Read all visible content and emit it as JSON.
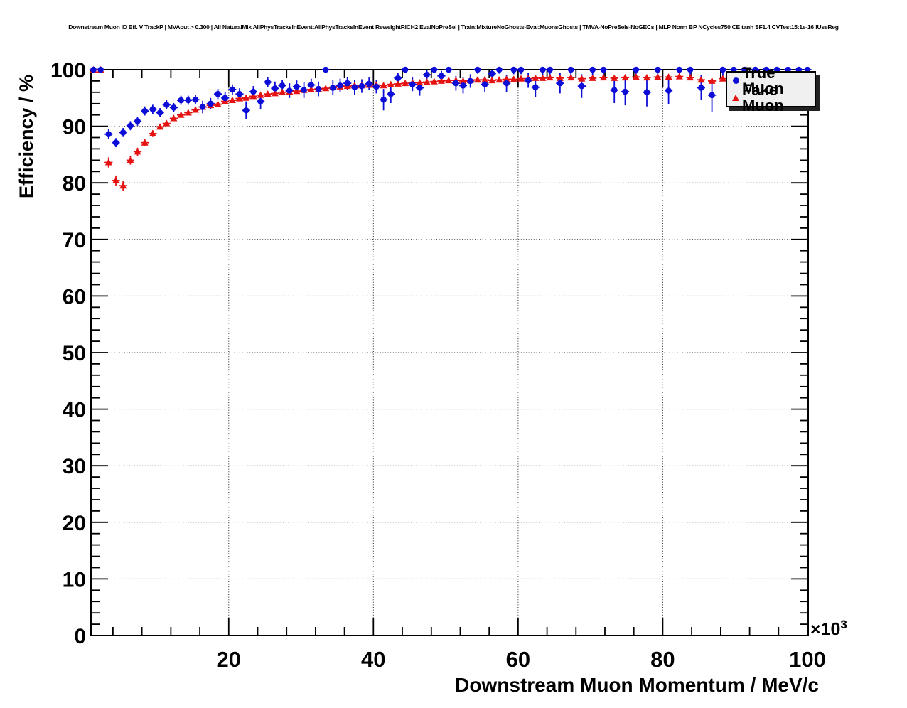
{
  "chart_data": {
    "type": "scatter",
    "title": "Downstream Muon ID Eff. V TrackP | MVAout > 0.300 | All NaturalMix AllPhysTracksInEvent:AllPhysTracksInEvent ReweightRICH2 EvalNoPreSel | Train:MixtureNoGhosts-Eval:MuonsGhosts | TMVA-NoPreSels-NoGECs | MLP Norm BP NCycles750 CE tanh SF1.4 CVTest15:1e-16 !UseReg",
    "xlabel": "Downstream Muon Momentum / MeV/c",
    "ylabel": "Efficiency / %",
    "x_scale_exponent": {
      "base": "×10",
      "power": "3"
    },
    "xlim": [
      0.96,
      100.1
    ],
    "ylim": [
      0,
      100
    ],
    "x_ticks": [
      20,
      40,
      60,
      80,
      100
    ],
    "x_minor_step": 4,
    "y_ticks": [
      0,
      10,
      20,
      30,
      40,
      50,
      60,
      70,
      80,
      90,
      100
    ],
    "y_minor_step": 2,
    "grid": "dotted-major",
    "legend": {
      "position": "top-right",
      "background": "#f0f0f0",
      "border": "#000000",
      "shadow": "#222222"
    },
    "x": [
      1.3,
      2.3,
      3.4,
      4.4,
      5.4,
      6.4,
      7.4,
      8.4,
      9.5,
      10.5,
      11.4,
      12.4,
      13.4,
      14.4,
      15.4,
      16.4,
      17.5,
      18.5,
      19.5,
      20.5,
      21.5,
      22.4,
      23.4,
      24.4,
      25.4,
      26.4,
      27.4,
      28.4,
      29.4,
      30.4,
      31.4,
      32.4,
      33.4,
      34.4,
      35.4,
      36.4,
      37.4,
      38.4,
      39.4,
      40.4,
      41.4,
      42.4,
      43.4,
      44.4,
      45.4,
      46.4,
      47.4,
      48.4,
      49.4,
      50.4,
      51.4,
      52.4,
      53.4,
      54.4,
      55.4,
      56.4,
      57.4,
      58.4,
      59.4,
      60.4,
      61.4,
      62.4,
      63.4,
      64.4,
      65.8,
      67.3,
      68.8,
      70.3,
      71.8,
      73.3,
      74.8,
      76.3,
      77.8,
      79.3,
      80.8,
      82.3,
      83.8,
      85.3,
      86.8,
      88.3,
      89.8,
      91.3,
      92.8,
      94.3,
      95.8,
      97.3,
      98.8,
      100.0
    ],
    "series": [
      {
        "name": "True Muon",
        "marker": "circle",
        "color": "#0d0dd8",
        "ex": 0.55,
        "y": [
          100,
          100,
          88.6,
          87.1,
          88.9,
          90.1,
          90.9,
          92.7,
          93.0,
          92.4,
          93.8,
          93.3,
          94.6,
          94.6,
          94.7,
          93.4,
          94.0,
          95.7,
          95.0,
          96.5,
          95.7,
          92.8,
          96.1,
          94.4,
          97.8,
          96.7,
          97.2,
          96.3,
          97.0,
          96.4,
          97.3,
          96.6,
          100,
          96.8,
          97.2,
          97.6,
          96.9,
          97.1,
          97.5,
          97.0,
          94.7,
          95.7,
          98.5,
          100,
          97.4,
          96.8,
          99.1,
          100,
          98.9,
          100,
          97.6,
          97.2,
          98.0,
          100,
          97.4,
          99.3,
          100,
          97.6,
          100,
          100,
          98.1,
          96.9,
          100,
          100,
          97.6,
          100,
          97.1,
          100,
          100,
          96.4,
          96.1,
          100,
          96.0,
          100,
          96.3,
          100,
          100,
          96.8,
          95.5,
          100,
          100,
          100,
          100,
          100,
          100,
          100,
          100,
          100
        ],
        "ey": [
          0.2,
          0.2,
          0.9,
          0.8,
          0.8,
          0.8,
          0.8,
          0.8,
          0.8,
          0.8,
          0.8,
          0.8,
          0.8,
          0.8,
          0.8,
          1.1,
          1.0,
          0.9,
          1.0,
          0.9,
          1.0,
          1.6,
          1.0,
          1.4,
          0.9,
          1.2,
          1.0,
          1.3,
          1.1,
          1.4,
          1.1,
          1.3,
          0.5,
          1.3,
          1.2,
          1.1,
          1.3,
          1.2,
          1.1,
          1.2,
          1.9,
          1.6,
          0.9,
          0.6,
          1.2,
          1.4,
          0.8,
          0.6,
          0.9,
          0.6,
          1.3,
          1.4,
          1.2,
          0.7,
          1.4,
          0.9,
          0.7,
          1.5,
          0.8,
          0.8,
          1.3,
          1.7,
          0.9,
          0.9,
          1.8,
          1.0,
          2.1,
          1.0,
          1.0,
          2.3,
          2.4,
          1.1,
          2.5,
          1.1,
          2.4,
          1.2,
          1.2,
          2.2,
          2.9,
          1.3,
          1.3,
          1.4,
          1.4,
          1.5,
          1.5,
          1.6,
          1.6,
          1.6
        ]
      },
      {
        "name": "Fake Muon",
        "marker": "triangle-up",
        "color": "#e51212",
        "ex": 0.55,
        "y": [
          100,
          100,
          83.6,
          80.4,
          79.5,
          84.0,
          85.5,
          87.1,
          88.7,
          89.9,
          90.5,
          91.4,
          92.0,
          92.4,
          92.9,
          93.4,
          93.7,
          93.9,
          94.4,
          94.6,
          94.9,
          95.0,
          95.3,
          95.5,
          95.7,
          95.8,
          96.0,
          96.1,
          96.2,
          96.4,
          96.5,
          96.6,
          96.7,
          96.9,
          97.0,
          97.1,
          97.2,
          97.2,
          97.3,
          97.3,
          97.2,
          97.4,
          97.5,
          97.6,
          97.7,
          97.7,
          97.8,
          97.9,
          98.0,
          98.1,
          98.1,
          98.0,
          98.1,
          98.2,
          98.2,
          98.1,
          98.2,
          98.3,
          98.3,
          98.4,
          98.4,
          98.5,
          98.5,
          98.6,
          98.5,
          98.6,
          98.4,
          98.5,
          98.6,
          98.5,
          98.6,
          98.7,
          98.6,
          98.7,
          98.7,
          98.8,
          98.6,
          98.2,
          98.0,
          98.4,
          98.7,
          98.6,
          98.7,
          98.6,
          98.8,
          98.7,
          98.9,
          98.8
        ],
        "ey": [
          0.2,
          0.2,
          0.9,
          0.9,
          0.9,
          0.8,
          0.7,
          0.6,
          0.6,
          0.5,
          0.5,
          0.5,
          0.4,
          0.4,
          0.4,
          0.4,
          0.4,
          0.35,
          0.35,
          0.3,
          0.3,
          0.3,
          0.3,
          0.3,
          0.3,
          0.3,
          0.3,
          0.25,
          0.25,
          0.25,
          0.25,
          0.25,
          0.25,
          0.25,
          0.2,
          0.2,
          0.2,
          0.2,
          0.2,
          0.2,
          0.2,
          0.2,
          0.2,
          0.2,
          0.2,
          0.2,
          0.2,
          0.2,
          0.2,
          0.2,
          0.2,
          0.2,
          0.2,
          0.2,
          0.2,
          0.2,
          0.2,
          0.2,
          0.2,
          0.2,
          0.2,
          0.2,
          0.2,
          0.2,
          0.25,
          0.25,
          0.25,
          0.25,
          0.25,
          0.3,
          0.3,
          0.3,
          0.3,
          0.3,
          0.3,
          0.3,
          0.35,
          0.4,
          0.45,
          0.4,
          0.4,
          0.4,
          0.45,
          0.5,
          0.5,
          0.5,
          0.5,
          0.5
        ]
      }
    ]
  }
}
